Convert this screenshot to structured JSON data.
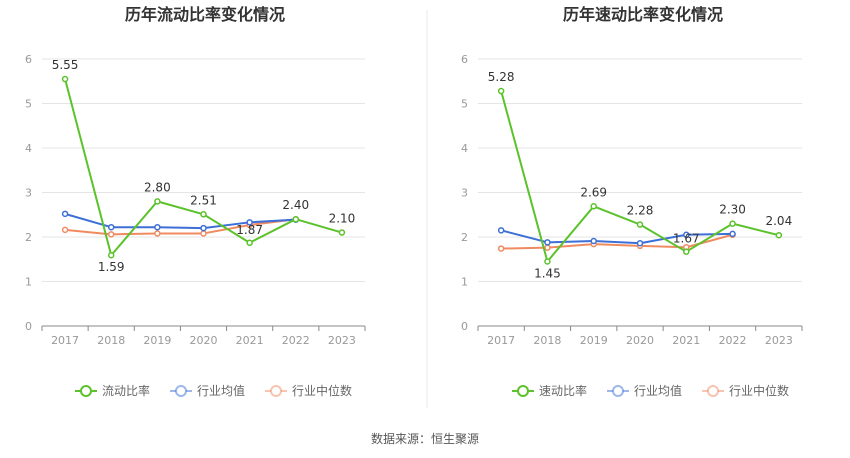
{
  "colors": {
    "current": "#5cc22b",
    "quick": "#5cc22b",
    "industry_avg": "#3d6fd6",
    "industry_median": "#f08a60",
    "grid": "#e5e5e5",
    "axis": "#999999",
    "divider": "#e8e8e8"
  },
  "chart_data": [
    {
      "type": "line",
      "title": "历年流动比率变化情况",
      "x": [
        "2017",
        "2018",
        "2019",
        "2020",
        "2021",
        "2022",
        "2023"
      ],
      "yticks": [
        "0",
        "1",
        "2",
        "3",
        "4",
        "5",
        "6"
      ],
      "ylim": [
        0,
        6
      ],
      "grid": true,
      "legend_position": "bottom",
      "series": [
        {
          "name": "流动比率",
          "color_key": "current",
          "values": [
            5.55,
            1.59,
            2.8,
            2.51,
            1.87,
            2.4,
            2.1
          ],
          "labels": [
            "5.55",
            "1.59",
            "2.80",
            "2.51",
            "1.87",
            "2.40",
            "2.10"
          ]
        },
        {
          "name": "行业均值",
          "color_key": "industry_avg",
          "values": [
            2.52,
            2.22,
            2.22,
            2.2,
            2.33,
            2.39,
            null
          ]
        },
        {
          "name": "行业中位数",
          "color_key": "industry_median",
          "values": [
            2.16,
            2.06,
            2.08,
            2.08,
            2.27,
            2.4,
            null
          ]
        }
      ]
    },
    {
      "type": "line",
      "title": "历年速动比率变化情况",
      "x": [
        "2017",
        "2018",
        "2019",
        "2020",
        "2021",
        "2022",
        "2023"
      ],
      "yticks": [
        "0",
        "1",
        "2",
        "3",
        "4",
        "5",
        "6"
      ],
      "ylim": [
        0,
        6
      ],
      "grid": true,
      "legend_position": "bottom",
      "series": [
        {
          "name": "速动比率",
          "color_key": "quick",
          "values": [
            5.28,
            1.45,
            2.69,
            2.28,
            1.67,
            2.3,
            2.04
          ],
          "labels": [
            "5.28",
            "1.45",
            "2.69",
            "2.28",
            "1.67",
            "2.30",
            "2.04"
          ]
        },
        {
          "name": "行业均值",
          "color_key": "industry_avg",
          "values": [
            2.15,
            1.88,
            1.91,
            1.86,
            2.05,
            2.07,
            null
          ]
        },
        {
          "name": "行业中位数",
          "color_key": "industry_median",
          "values": [
            1.74,
            1.76,
            1.84,
            1.8,
            1.77,
            2.05,
            null
          ]
        }
      ]
    }
  ],
  "footer": {
    "source_label": "数据来源：",
    "source_name": "恒生聚源"
  }
}
